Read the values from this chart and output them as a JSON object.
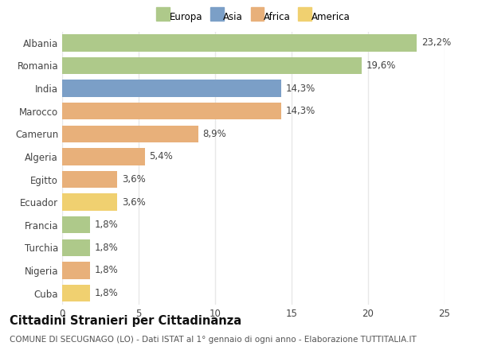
{
  "categories": [
    "Albania",
    "Romania",
    "India",
    "Marocco",
    "Camerun",
    "Algeria",
    "Egitto",
    "Ecuador",
    "Francia",
    "Turchia",
    "Nigeria",
    "Cuba"
  ],
  "values": [
    23.2,
    19.6,
    14.3,
    14.3,
    8.9,
    5.4,
    3.6,
    3.6,
    1.8,
    1.8,
    1.8,
    1.8
  ],
  "labels": [
    "23,2%",
    "19,6%",
    "14,3%",
    "14,3%",
    "8,9%",
    "5,4%",
    "3,6%",
    "3,6%",
    "1,8%",
    "1,8%",
    "1,8%",
    "1,8%"
  ],
  "colors": [
    "#aec98a",
    "#aec98a",
    "#7b9fc7",
    "#e8b07a",
    "#e8b07a",
    "#e8b07a",
    "#e8b07a",
    "#f0d070",
    "#aec98a",
    "#aec98a",
    "#e8b07a",
    "#f0d070"
  ],
  "legend_labels": [
    "Europa",
    "Asia",
    "Africa",
    "America"
  ],
  "legend_colors": [
    "#aec98a",
    "#7b9fc7",
    "#e8b07a",
    "#f0d070"
  ],
  "xlim": [
    0,
    25
  ],
  "xticks": [
    0,
    5,
    10,
    15,
    20,
    25
  ],
  "title": "Cittadini Stranieri per Cittadinanza",
  "subtitle": "COMUNE DI SECUGNAGO (LO) - Dati ISTAT al 1° gennaio di ogni anno - Elaborazione TUTTITALIA.IT",
  "bg_color": "#ffffff",
  "grid_color": "#e8e8e8",
  "label_fontsize": 8.5,
  "title_fontsize": 10.5,
  "subtitle_fontsize": 7.5
}
